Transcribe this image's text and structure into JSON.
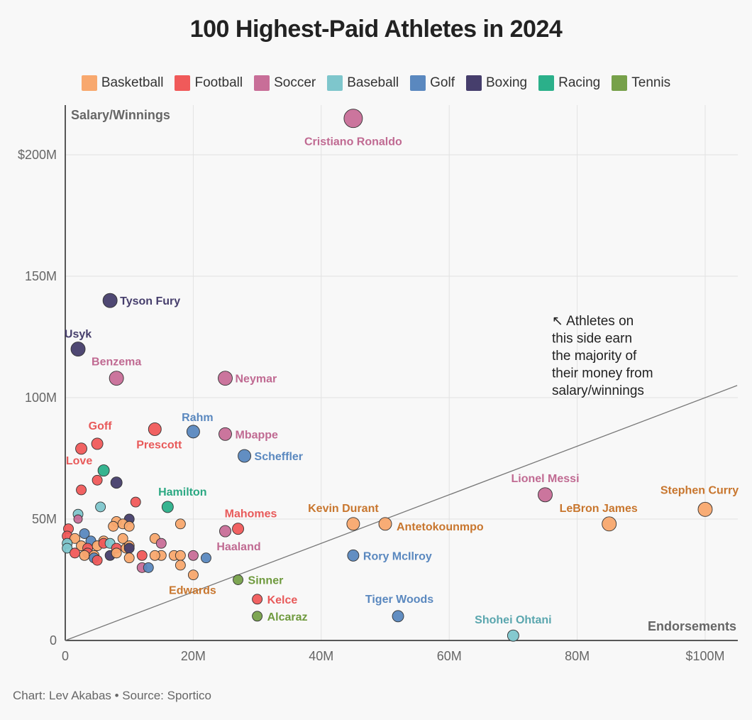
{
  "title": "100 Highest-Paid Athletes in 2024",
  "footer": "Chart: Lev Akabas • Source: Sportico",
  "colors": {
    "Basketball": "#f8a86e",
    "Football": "#f05a5a",
    "Soccer": "#c86e98",
    "Baseball": "#7ec6cc",
    "Golf": "#5a88bf",
    "Boxing": "#463e6c",
    "Racing": "#2bb08a",
    "Tennis": "#77a14a"
  },
  "label_colors": {
    "Basketball": "#c8762e",
    "Football": "#e85a5a",
    "Soccer": "#c06a92",
    "Baseball": "#5aa6ae",
    "Golf": "#5a88bf",
    "Boxing": "#463e6c",
    "Racing": "#2aa882",
    "Tennis": "#6f9a3e"
  },
  "chart_data": {
    "type": "scatter",
    "title": "100 Highest-Paid Athletes in 2024",
    "xlabel": "Endorsements",
    "ylabel": "Salary/Winnings",
    "xlim": [
      0,
      105
    ],
    "ylim": [
      0,
      220
    ],
    "x_ticks": [
      0,
      20,
      40,
      60,
      80,
      100
    ],
    "x_tick_labels": [
      "0",
      "20M",
      "40M",
      "60M",
      "80M",
      "$100M"
    ],
    "y_ticks": [
      0,
      50,
      100,
      150,
      200
    ],
    "y_tick_labels": [
      "0",
      "50M",
      "100M",
      "150M",
      "$200M"
    ],
    "legend": [
      "Basketball",
      "Football",
      "Soccer",
      "Baseball",
      "Golf",
      "Boxing",
      "Racing",
      "Tennis"
    ],
    "legend_position": "top",
    "reference_line": {
      "from": [
        0,
        0
      ],
      "to": [
        105,
        105
      ]
    },
    "annotation": [
      "↖ Athletes on",
      "this side earn",
      "the majority of",
      "their money from",
      "salary/winnings"
    ],
    "points": [
      {
        "name": "Cristiano Ronaldo",
        "sport": "Soccer",
        "x": 45,
        "y": 215,
        "size": 13
      },
      {
        "name": "Tyson Fury",
        "sport": "Boxing",
        "x": 7,
        "y": 140,
        "size": 10
      },
      {
        "name": "Usyk",
        "sport": "Boxing",
        "x": 2,
        "y": 120,
        "size": 10
      },
      {
        "name": "Benzema",
        "sport": "Soccer",
        "x": 8,
        "y": 108,
        "size": 10
      },
      {
        "name": "Neymar",
        "sport": "Soccer",
        "x": 25,
        "y": 108,
        "size": 10
      },
      {
        "name": "Rahm",
        "sport": "Golf",
        "x": 20,
        "y": 86,
        "size": 9
      },
      {
        "name": "Mbappe",
        "sport": "Soccer",
        "x": 25,
        "y": 85,
        "size": 9
      },
      {
        "name": "Prescott",
        "sport": "Football",
        "x": 14,
        "y": 87,
        "size": 9
      },
      {
        "name": "Goff",
        "sport": "Football",
        "x": 5,
        "y": 81,
        "size": 8
      },
      {
        "name": "Love",
        "sport": "Football",
        "x": 2.5,
        "y": 79,
        "size": 8
      },
      {
        "name": "Scheffler",
        "sport": "Golf",
        "x": 28,
        "y": 76,
        "size": 9
      },
      {
        "name": "Hamilton",
        "sport": "Racing",
        "x": 16,
        "y": 55,
        "size": 8
      },
      {
        "name": "Lionel Messi",
        "sport": "Soccer",
        "x": 75,
        "y": 60,
        "size": 10
      },
      {
        "name": "Stephen Curry",
        "sport": "Basketball",
        "x": 100,
        "y": 54,
        "size": 10
      },
      {
        "name": "LeBron James",
        "sport": "Basketball",
        "x": 85,
        "y": 48,
        "size": 10
      },
      {
        "name": "Kevin Durant",
        "sport": "Basketball",
        "x": 45,
        "y": 48,
        "size": 9
      },
      {
        "name": "Antetokounmpo",
        "sport": "Basketball",
        "x": 50,
        "y": 48,
        "size": 9
      },
      {
        "name": "Mahomes",
        "sport": "Football",
        "x": 27,
        "y": 46,
        "size": 8
      },
      {
        "name": "Haaland",
        "sport": "Soccer",
        "x": 25,
        "y": 45,
        "size": 8
      },
      {
        "name": "Rory McIlroy",
        "sport": "Golf",
        "x": 45,
        "y": 35,
        "size": 8
      },
      {
        "name": "Sinner",
        "sport": "Tennis",
        "x": 27,
        "y": 25,
        "size": 7
      },
      {
        "name": "Edwards",
        "sport": "Basketball",
        "x": 20,
        "y": 27,
        "size": 7
      },
      {
        "name": "Kelce",
        "sport": "Football",
        "x": 30,
        "y": 17,
        "size": 7
      },
      {
        "name": "Alcaraz",
        "sport": "Tennis",
        "x": 30,
        "y": 10,
        "size": 7
      },
      {
        "name": "Tiger Woods",
        "sport": "Golf",
        "x": 52,
        "y": 10,
        "size": 8
      },
      {
        "name": "Shohei Ohtani",
        "sport": "Baseball",
        "x": 70,
        "y": 2,
        "size": 8
      },
      {
        "name": "",
        "sport": "Boxing",
        "x": 8,
        "y": 65,
        "size": 8
      },
      {
        "name": "",
        "sport": "Racing",
        "x": 6,
        "y": 70,
        "size": 8
      },
      {
        "name": "",
        "sport": "Football",
        "x": 2.5,
        "y": 62,
        "size": 7
      },
      {
        "name": "",
        "sport": "Football",
        "x": 5,
        "y": 66,
        "size": 7
      },
      {
        "name": "",
        "sport": "Baseball",
        "x": 5.5,
        "y": 55,
        "size": 7
      },
      {
        "name": "",
        "sport": "Football",
        "x": 11,
        "y": 57,
        "size": 7
      },
      {
        "name": "",
        "sport": "Boxing",
        "x": 10,
        "y": 50,
        "size": 7
      },
      {
        "name": "",
        "sport": "Baseball",
        "x": 2,
        "y": 52,
        "size": 7
      },
      {
        "name": "",
        "sport": "Soccer",
        "x": 2,
        "y": 50,
        "size": 6
      },
      {
        "name": "",
        "sport": "Basketball",
        "x": 18,
        "y": 48,
        "size": 7
      },
      {
        "name": "",
        "sport": "Basketball",
        "x": 8,
        "y": 49,
        "size": 7
      },
      {
        "name": "",
        "sport": "Basketball",
        "x": 7.5,
        "y": 47,
        "size": 7
      },
      {
        "name": "",
        "sport": "Basketball",
        "x": 9,
        "y": 48,
        "size": 7
      },
      {
        "name": "",
        "sport": "Basketball",
        "x": 10,
        "y": 47,
        "size": 7
      },
      {
        "name": "",
        "sport": "Football",
        "x": 0.5,
        "y": 46,
        "size": 7
      },
      {
        "name": "",
        "sport": "Football",
        "x": 0.3,
        "y": 43,
        "size": 7
      },
      {
        "name": "",
        "sport": "Basketball",
        "x": 1.5,
        "y": 42,
        "size": 7
      },
      {
        "name": "",
        "sport": "Golf",
        "x": 3,
        "y": 44,
        "size": 7
      },
      {
        "name": "",
        "sport": "Golf",
        "x": 4,
        "y": 41,
        "size": 7
      },
      {
        "name": "",
        "sport": "Basketball",
        "x": 6,
        "y": 41,
        "size": 7
      },
      {
        "name": "",
        "sport": "Basketball",
        "x": 9,
        "y": 42,
        "size": 7
      },
      {
        "name": "",
        "sport": "Baseball",
        "x": 0.3,
        "y": 40,
        "size": 7
      },
      {
        "name": "",
        "sport": "Baseball",
        "x": 0.3,
        "y": 38,
        "size": 7
      },
      {
        "name": "",
        "sport": "Basketball",
        "x": 2.5,
        "y": 39,
        "size": 7
      },
      {
        "name": "",
        "sport": "Football",
        "x": 3.5,
        "y": 38,
        "size": 7
      },
      {
        "name": "",
        "sport": "Basketball",
        "x": 5,
        "y": 39,
        "size": 7
      },
      {
        "name": "",
        "sport": "Football",
        "x": 6,
        "y": 40,
        "size": 7
      },
      {
        "name": "",
        "sport": "Baseball",
        "x": 7,
        "y": 40,
        "size": 7
      },
      {
        "name": "",
        "sport": "Football",
        "x": 8,
        "y": 38,
        "size": 7
      },
      {
        "name": "",
        "sport": "Basketball",
        "x": 9.5,
        "y": 38,
        "size": 7
      },
      {
        "name": "",
        "sport": "Basketball",
        "x": 10,
        "y": 39,
        "size": 7
      },
      {
        "name": "",
        "sport": "Boxing",
        "x": 10,
        "y": 38,
        "size": 7
      },
      {
        "name": "",
        "sport": "Football",
        "x": 1.5,
        "y": 36,
        "size": 7
      },
      {
        "name": "",
        "sport": "Football",
        "x": 3.5,
        "y": 36,
        "size": 7
      },
      {
        "name": "",
        "sport": "Basketball",
        "x": 3,
        "y": 35,
        "size": 7
      },
      {
        "name": "",
        "sport": "Basketball",
        "x": 4.5,
        "y": 35,
        "size": 7
      },
      {
        "name": "",
        "sport": "Golf",
        "x": 4.5,
        "y": 34,
        "size": 7
      },
      {
        "name": "",
        "sport": "Football",
        "x": 5,
        "y": 33,
        "size": 7
      },
      {
        "name": "",
        "sport": "Boxing",
        "x": 7,
        "y": 35,
        "size": 7
      },
      {
        "name": "",
        "sport": "Basketball",
        "x": 8,
        "y": 36,
        "size": 7
      },
      {
        "name": "",
        "sport": "Basketball",
        "x": 10,
        "y": 34,
        "size": 7
      },
      {
        "name": "",
        "sport": "Football",
        "x": 12,
        "y": 35,
        "size": 7
      },
      {
        "name": "",
        "sport": "Basketball",
        "x": 14,
        "y": 42,
        "size": 7
      },
      {
        "name": "",
        "sport": "Soccer",
        "x": 15,
        "y": 40,
        "size": 7
      },
      {
        "name": "",
        "sport": "Basketball",
        "x": 15,
        "y": 35,
        "size": 7
      },
      {
        "name": "",
        "sport": "Basketball",
        "x": 14,
        "y": 35,
        "size": 7
      },
      {
        "name": "",
        "sport": "Basketball",
        "x": 17,
        "y": 35,
        "size": 7
      },
      {
        "name": "",
        "sport": "Basketball",
        "x": 18,
        "y": 35,
        "size": 7
      },
      {
        "name": "",
        "sport": "Soccer",
        "x": 20,
        "y": 35,
        "size": 7
      },
      {
        "name": "",
        "sport": "Golf",
        "x": 22,
        "y": 34,
        "size": 7
      },
      {
        "name": "",
        "sport": "Basketball",
        "x": 18,
        "y": 31,
        "size": 7
      },
      {
        "name": "",
        "sport": "Soccer",
        "x": 12,
        "y": 30,
        "size": 7
      },
      {
        "name": "",
        "sport": "Golf",
        "x": 13,
        "y": 30,
        "size": 7
      }
    ]
  }
}
